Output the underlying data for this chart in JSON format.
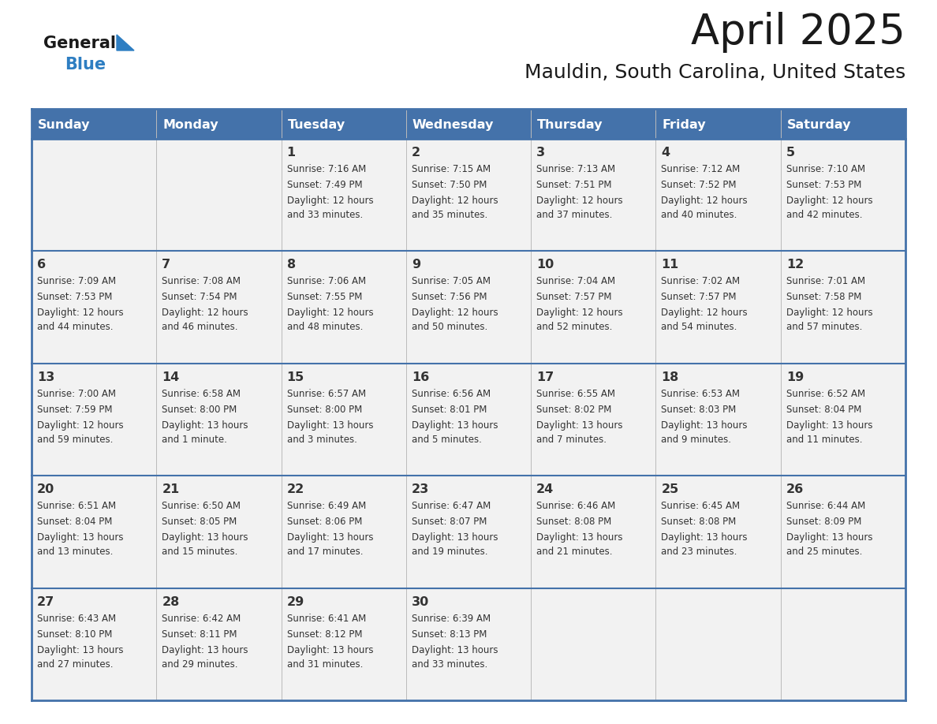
{
  "title": "April 2025",
  "subtitle": "Mauldin, South Carolina, United States",
  "days_of_week": [
    "Sunday",
    "Monday",
    "Tuesday",
    "Wednesday",
    "Thursday",
    "Friday",
    "Saturday"
  ],
  "header_bg": "#4472AA",
  "header_text": "#FFFFFF",
  "cell_bg": "#F2F2F2",
  "border_color": "#4472AA",
  "row_divider_color": "#4472AA",
  "text_color": "#333333",
  "title_color": "#1a1a1a",
  "logo_general_color": "#1a1a1a",
  "logo_blue_color": "#2E7EC2",
  "logo_triangle_color": "#2E7EC2",
  "calendar_data": [
    [
      {
        "day": "",
        "sunrise": "",
        "sunset": "",
        "daylight": ""
      },
      {
        "day": "",
        "sunrise": "",
        "sunset": "",
        "daylight": ""
      },
      {
        "day": "1",
        "sunrise": "Sunrise: 7:16 AM",
        "sunset": "Sunset: 7:49 PM",
        "daylight": "Daylight: 12 hours\nand 33 minutes."
      },
      {
        "day": "2",
        "sunrise": "Sunrise: 7:15 AM",
        "sunset": "Sunset: 7:50 PM",
        "daylight": "Daylight: 12 hours\nand 35 minutes."
      },
      {
        "day": "3",
        "sunrise": "Sunrise: 7:13 AM",
        "sunset": "Sunset: 7:51 PM",
        "daylight": "Daylight: 12 hours\nand 37 minutes."
      },
      {
        "day": "4",
        "sunrise": "Sunrise: 7:12 AM",
        "sunset": "Sunset: 7:52 PM",
        "daylight": "Daylight: 12 hours\nand 40 minutes."
      },
      {
        "day": "5",
        "sunrise": "Sunrise: 7:10 AM",
        "sunset": "Sunset: 7:53 PM",
        "daylight": "Daylight: 12 hours\nand 42 minutes."
      }
    ],
    [
      {
        "day": "6",
        "sunrise": "Sunrise: 7:09 AM",
        "sunset": "Sunset: 7:53 PM",
        "daylight": "Daylight: 12 hours\nand 44 minutes."
      },
      {
        "day": "7",
        "sunrise": "Sunrise: 7:08 AM",
        "sunset": "Sunset: 7:54 PM",
        "daylight": "Daylight: 12 hours\nand 46 minutes."
      },
      {
        "day": "8",
        "sunrise": "Sunrise: 7:06 AM",
        "sunset": "Sunset: 7:55 PM",
        "daylight": "Daylight: 12 hours\nand 48 minutes."
      },
      {
        "day": "9",
        "sunrise": "Sunrise: 7:05 AM",
        "sunset": "Sunset: 7:56 PM",
        "daylight": "Daylight: 12 hours\nand 50 minutes."
      },
      {
        "day": "10",
        "sunrise": "Sunrise: 7:04 AM",
        "sunset": "Sunset: 7:57 PM",
        "daylight": "Daylight: 12 hours\nand 52 minutes."
      },
      {
        "day": "11",
        "sunrise": "Sunrise: 7:02 AM",
        "sunset": "Sunset: 7:57 PM",
        "daylight": "Daylight: 12 hours\nand 54 minutes."
      },
      {
        "day": "12",
        "sunrise": "Sunrise: 7:01 AM",
        "sunset": "Sunset: 7:58 PM",
        "daylight": "Daylight: 12 hours\nand 57 minutes."
      }
    ],
    [
      {
        "day": "13",
        "sunrise": "Sunrise: 7:00 AM",
        "sunset": "Sunset: 7:59 PM",
        "daylight": "Daylight: 12 hours\nand 59 minutes."
      },
      {
        "day": "14",
        "sunrise": "Sunrise: 6:58 AM",
        "sunset": "Sunset: 8:00 PM",
        "daylight": "Daylight: 13 hours\nand 1 minute."
      },
      {
        "day": "15",
        "sunrise": "Sunrise: 6:57 AM",
        "sunset": "Sunset: 8:00 PM",
        "daylight": "Daylight: 13 hours\nand 3 minutes."
      },
      {
        "day": "16",
        "sunrise": "Sunrise: 6:56 AM",
        "sunset": "Sunset: 8:01 PM",
        "daylight": "Daylight: 13 hours\nand 5 minutes."
      },
      {
        "day": "17",
        "sunrise": "Sunrise: 6:55 AM",
        "sunset": "Sunset: 8:02 PM",
        "daylight": "Daylight: 13 hours\nand 7 minutes."
      },
      {
        "day": "18",
        "sunrise": "Sunrise: 6:53 AM",
        "sunset": "Sunset: 8:03 PM",
        "daylight": "Daylight: 13 hours\nand 9 minutes."
      },
      {
        "day": "19",
        "sunrise": "Sunrise: 6:52 AM",
        "sunset": "Sunset: 8:04 PM",
        "daylight": "Daylight: 13 hours\nand 11 minutes."
      }
    ],
    [
      {
        "day": "20",
        "sunrise": "Sunrise: 6:51 AM",
        "sunset": "Sunset: 8:04 PM",
        "daylight": "Daylight: 13 hours\nand 13 minutes."
      },
      {
        "day": "21",
        "sunrise": "Sunrise: 6:50 AM",
        "sunset": "Sunset: 8:05 PM",
        "daylight": "Daylight: 13 hours\nand 15 minutes."
      },
      {
        "day": "22",
        "sunrise": "Sunrise: 6:49 AM",
        "sunset": "Sunset: 8:06 PM",
        "daylight": "Daylight: 13 hours\nand 17 minutes."
      },
      {
        "day": "23",
        "sunrise": "Sunrise: 6:47 AM",
        "sunset": "Sunset: 8:07 PM",
        "daylight": "Daylight: 13 hours\nand 19 minutes."
      },
      {
        "day": "24",
        "sunrise": "Sunrise: 6:46 AM",
        "sunset": "Sunset: 8:08 PM",
        "daylight": "Daylight: 13 hours\nand 21 minutes."
      },
      {
        "day": "25",
        "sunrise": "Sunrise: 6:45 AM",
        "sunset": "Sunset: 8:08 PM",
        "daylight": "Daylight: 13 hours\nand 23 minutes."
      },
      {
        "day": "26",
        "sunrise": "Sunrise: 6:44 AM",
        "sunset": "Sunset: 8:09 PM",
        "daylight": "Daylight: 13 hours\nand 25 minutes."
      }
    ],
    [
      {
        "day": "27",
        "sunrise": "Sunrise: 6:43 AM",
        "sunset": "Sunset: 8:10 PM",
        "daylight": "Daylight: 13 hours\nand 27 minutes."
      },
      {
        "day": "28",
        "sunrise": "Sunrise: 6:42 AM",
        "sunset": "Sunset: 8:11 PM",
        "daylight": "Daylight: 13 hours\nand 29 minutes."
      },
      {
        "day": "29",
        "sunrise": "Sunrise: 6:41 AM",
        "sunset": "Sunset: 8:12 PM",
        "daylight": "Daylight: 13 hours\nand 31 minutes."
      },
      {
        "day": "30",
        "sunrise": "Sunrise: 6:39 AM",
        "sunset": "Sunset: 8:13 PM",
        "daylight": "Daylight: 13 hours\nand 33 minutes."
      },
      {
        "day": "",
        "sunrise": "",
        "sunset": "",
        "daylight": ""
      },
      {
        "day": "",
        "sunrise": "",
        "sunset": "",
        "daylight": ""
      },
      {
        "day": "",
        "sunrise": "",
        "sunset": "",
        "daylight": ""
      }
    ]
  ]
}
